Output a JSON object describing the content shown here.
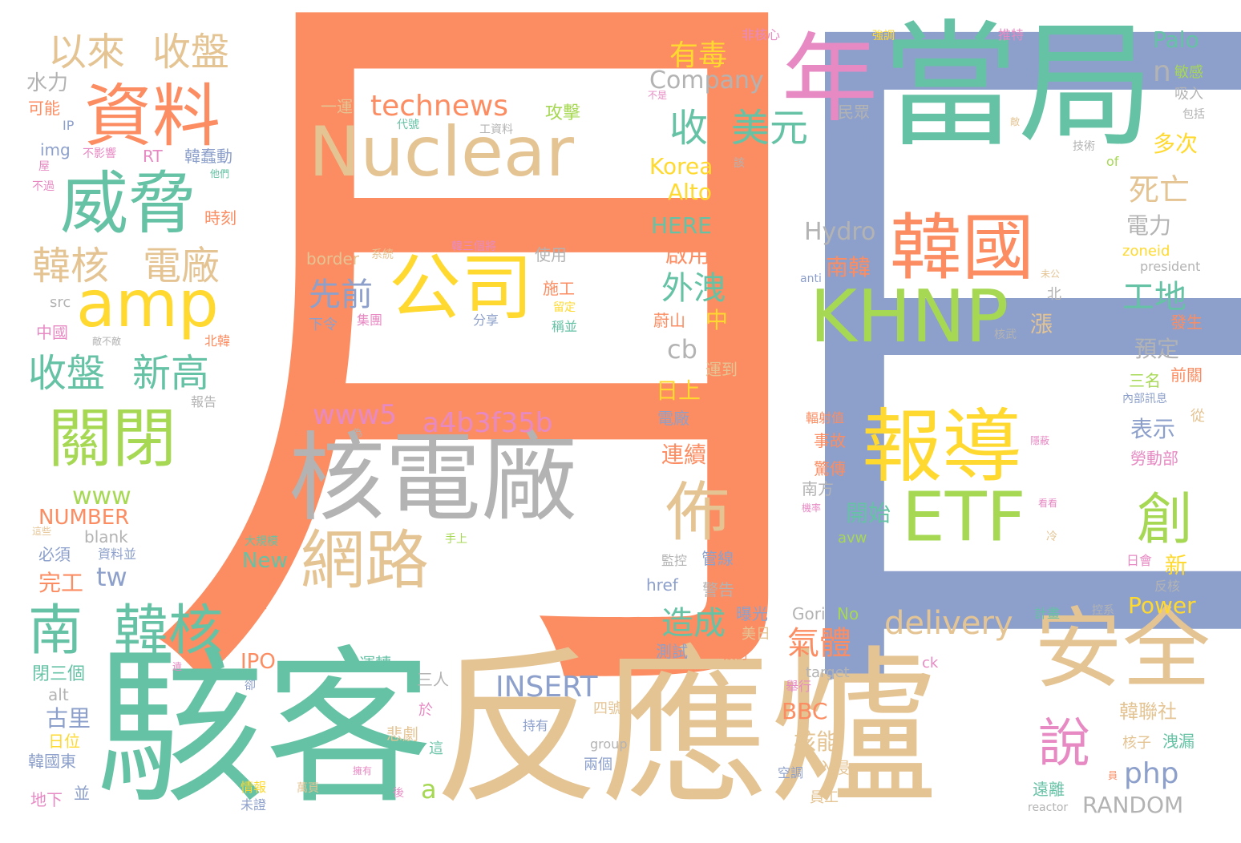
{
  "palette": {
    "orange": "#fc8d62",
    "blue": "#8da0cb",
    "green": "#66c2a5",
    "tan": "#e5c494",
    "pink": "#e78ac3",
    "lime": "#a6d854",
    "yellow": "#ffd92f",
    "gray": "#b3b3b3"
  },
  "words": [
    {
      "text": "月",
      "color": "orange",
      "size": 960
    },
    {
      "text": "日",
      "color": "blue",
      "size": 960
    },
    {
      "text": "反應爐",
      "color": "tan",
      "size": 210
    },
    {
      "text": "駭客",
      "color": "green",
      "size": 210
    },
    {
      "text": "當局",
      "color": "green",
      "size": 170
    },
    {
      "text": "核電廠",
      "color": "gray",
      "size": 120
    },
    {
      "text": "Nuclear",
      "color": "tan",
      "size": 86
    },
    {
      "text": "年",
      "color": "pink",
      "size": 120
    },
    {
      "text": "安全",
      "color": "tan",
      "size": 110
    },
    {
      "text": "報導",
      "color": "yellow",
      "size": 100
    },
    {
      "text": "韓國",
      "color": "orange",
      "size": 90
    },
    {
      "text": "KHNP",
      "color": "lime",
      "size": 90
    },
    {
      "text": "ETF",
      "color": "lime",
      "size": 85
    },
    {
      "text": "公司",
      "color": "yellow",
      "size": 90
    },
    {
      "text": "資料",
      "color": "orange",
      "size": 85
    },
    {
      "text": "威脅",
      "color": "green",
      "size": 85
    },
    {
      "text": "amp",
      "color": "yellow",
      "size": 80
    },
    {
      "text": "關閉",
      "color": "lime",
      "size": 80
    },
    {
      "text": "網路",
      "color": "tan",
      "size": 80
    },
    {
      "text": "佈",
      "color": "tan",
      "size": 80
    },
    {
      "text": "創",
      "color": "lime",
      "size": 70
    },
    {
      "text": "南",
      "color": "green",
      "size": 68
    },
    {
      "text": "韓核",
      "color": "green",
      "size": 68
    },
    {
      "text": "說",
      "color": "pink",
      "size": 65
    },
    {
      "text": "以來",
      "color": "tan",
      "size": 48
    },
    {
      "text": "收盤",
      "color": "tan",
      "size": 48
    },
    {
      "text": "韓核",
      "color": "tan",
      "size": 48
    },
    {
      "text": "電廠",
      "color": "tan",
      "size": 48
    },
    {
      "text": "收盤",
      "color": "green",
      "size": 48
    },
    {
      "text": "新高",
      "color": "green",
      "size": 48
    },
    {
      "text": "收",
      "color": "green",
      "size": 48
    },
    {
      "text": "美元",
      "color": "green",
      "size": 48
    },
    {
      "text": "先前",
      "color": "blue",
      "size": 40
    },
    {
      "text": "technews",
      "color": "orange",
      "size": 36
    },
    {
      "text": "www5",
      "color": "pink",
      "size": 34
    },
    {
      "text": "a4b3f35b",
      "color": "pink",
      "size": 34
    },
    {
      "text": "delivery",
      "color": "tan",
      "size": 40
    },
    {
      "text": "INSERT",
      "color": "blue",
      "size": 36
    },
    {
      "text": "外洩",
      "color": "green",
      "size": 40
    },
    {
      "text": "造成",
      "color": "green",
      "size": 40
    },
    {
      "text": "氣體",
      "color": "orange",
      "size": 40
    },
    {
      "text": "工地",
      "color": "green",
      "size": 40
    },
    {
      "text": "死亡",
      "color": "tan",
      "size": 38
    },
    {
      "text": "有毒",
      "color": "yellow",
      "size": 36
    },
    {
      "text": "Company",
      "color": "gray",
      "size": 30
    },
    {
      "text": "Korea",
      "color": "yellow",
      "size": 28
    },
    {
      "text": "Alto",
      "color": "yellow",
      "size": 28
    },
    {
      "text": "HERE",
      "color": "green",
      "size": 28
    },
    {
      "text": "啟用",
      "color": "orange",
      "size": 28
    },
    {
      "text": "cb",
      "color": "gray",
      "size": 32
    },
    {
      "text": "Hydro",
      "color": "gray",
      "size": 30
    },
    {
      "text": "南韓",
      "color": "orange",
      "size": 28
    },
    {
      "text": "開始",
      "color": "green",
      "size": 28
    },
    {
      "text": "php",
      "color": "blue",
      "size": 36
    },
    {
      "text": "RANDOM",
      "color": "gray",
      "size": 28
    },
    {
      "text": "Palo",
      "color": "green",
      "size": 28
    },
    {
      "text": "n",
      "color": "gray",
      "size": 36
    },
    {
      "text": "多次",
      "color": "yellow",
      "size": 28
    },
    {
      "text": "電力",
      "color": "gray",
      "size": 28
    },
    {
      "text": "預定",
      "color": "gray",
      "size": 28
    },
    {
      "text": "表示",
      "color": "blue",
      "size": 28
    },
    {
      "text": "Power",
      "color": "yellow",
      "size": 28
    },
    {
      "text": "新",
      "color": "yellow",
      "size": 28
    },
    {
      "text": "韓聯社",
      "color": "tan",
      "size": 24
    },
    {
      "text": "核能",
      "color": "tan",
      "size": 28
    },
    {
      "text": "BBC",
      "color": "orange",
      "size": 28
    },
    {
      "text": "IPO",
      "color": "orange",
      "size": 26
    },
    {
      "text": "New",
      "color": "green",
      "size": 26
    },
    {
      "text": "tw",
      "color": "blue",
      "size": 32
    },
    {
      "text": "www",
      "color": "lime",
      "size": 30
    },
    {
      "text": "NUMBER",
      "color": "orange",
      "size": 26
    },
    {
      "text": "blank",
      "color": "gray",
      "size": 20
    },
    {
      "text": "完工",
      "color": "orange",
      "size": 28
    },
    {
      "text": "古里",
      "color": "blue",
      "size": 28
    },
    {
      "text": "日位",
      "color": "yellow",
      "size": 20
    },
    {
      "text": "韓國東",
      "color": "blue",
      "size": 20
    },
    {
      "text": "地下",
      "color": "pink",
      "size": 20
    },
    {
      "text": "並",
      "color": "blue",
      "size": 20
    },
    {
      "text": "閉三個",
      "color": "green",
      "size": 22
    },
    {
      "text": "alt",
      "color": "gray",
      "size": 20
    },
    {
      "text": "必須",
      "color": "blue",
      "size": 20
    },
    {
      "text": "資料並",
      "color": "blue",
      "size": 16
    },
    {
      "text": "中國",
      "color": "pink",
      "size": 20
    },
    {
      "text": "src",
      "color": "gray",
      "size": 18
    },
    {
      "text": "時刻",
      "color": "orange",
      "size": 20
    },
    {
      "text": "韓蠢動",
      "color": "blue",
      "size": 20
    },
    {
      "text": "RT",
      "color": "pink",
      "size": 20
    },
    {
      "text": "img",
      "color": "blue",
      "size": 20
    },
    {
      "text": "IP",
      "color": "blue",
      "size": 16
    },
    {
      "text": "可能",
      "color": "orange",
      "size": 20
    },
    {
      "text": "水力",
      "color": "gray",
      "size": 26
    },
    {
      "text": "不影響",
      "color": "pink",
      "size": 14
    },
    {
      "text": "不過",
      "color": "pink",
      "size": 14
    },
    {
      "text": "屋",
      "color": "pink",
      "size": 14
    },
    {
      "text": "他們",
      "color": "green",
      "size": 12
    },
    {
      "text": "報告",
      "color": "gray",
      "size": 16
    },
    {
      "text": "北韓",
      "color": "orange",
      "size": 16
    },
    {
      "text": "敵不敵",
      "color": "gray",
      "size": 12
    },
    {
      "text": "一運",
      "color": "tan",
      "size": 20
    },
    {
      "text": "工資料",
      "color": "gray",
      "size": 14
    },
    {
      "text": "代號",
      "color": "green",
      "size": 14
    },
    {
      "text": "攻擊",
      "color": "lime",
      "size": 22
    },
    {
      "text": "border",
      "color": "tan",
      "size": 20
    },
    {
      "text": "系統",
      "color": "tan",
      "size": 14
    },
    {
      "text": "韓三個將",
      "color": "pink",
      "size": 14
    },
    {
      "text": "使用",
      "color": "gray",
      "size": 20
    },
    {
      "text": "施工",
      "color": "orange",
      "size": 20
    },
    {
      "text": "留定",
      "color": "yellow",
      "size": 14
    },
    {
      "text": "稱並",
      "color": "green",
      "size": 16
    },
    {
      "text": "下令",
      "color": "blue",
      "size": 18
    },
    {
      "text": "集團",
      "color": "pink",
      "size": 16
    },
    {
      "text": "分享",
      "color": "blue",
      "size": 16
    },
    {
      "text": "為",
      "color": "gray",
      "size": 12
    },
    {
      "text": "非核心",
      "color": "pink",
      "size": 16
    },
    {
      "text": "強調",
      "color": "yellow",
      "size": 14
    },
    {
      "text": "推特",
      "color": "pink",
      "size": 16
    },
    {
      "text": "敏感",
      "color": "lime",
      "size": 18
    },
    {
      "text": "吸入",
      "color": "gray",
      "size": 18
    },
    {
      "text": "包括",
      "color": "gray",
      "size": 14
    },
    {
      "text": "技術",
      "color": "gray",
      "size": 14
    },
    {
      "text": "of",
      "color": "lime",
      "size": 16
    },
    {
      "text": "民眾",
      "color": "gray",
      "size": 20
    },
    {
      "text": "耶誕節",
      "color": "blue",
      "size": 20
    },
    {
      "text": "不是",
      "color": "pink",
      "size": 12
    },
    {
      "text": "該",
      "color": "gray",
      "size": 14
    },
    {
      "text": "敵",
      "color": "tan",
      "size": 12
    },
    {
      "text": "zoneid",
      "color": "yellow",
      "size": 18
    },
    {
      "text": "president",
      "color": "gray",
      "size": 16
    },
    {
      "text": "anti",
      "color": "blue",
      "size": 14
    },
    {
      "text": "未公",
      "color": "tan",
      "size": 12
    },
    {
      "text": "北",
      "color": "gray",
      "size": 18
    },
    {
      "text": "核武",
      "color": "gray",
      "size": 14
    },
    {
      "text": "漲",
      "color": "tan",
      "size": 28
    },
    {
      "text": "中",
      "color": "yellow",
      "size": 28
    },
    {
      "text": "蔚山",
      "color": "orange",
      "size": 20
    },
    {
      "text": "起見",
      "color": "orange",
      "size": 14
    },
    {
      "text": "運到",
      "color": "tan",
      "size": 20
    },
    {
      "text": "日上",
      "color": "yellow",
      "size": 28
    },
    {
      "text": "電廠",
      "color": "blue",
      "size": 20
    },
    {
      "text": "公",
      "color": "orange",
      "size": 28
    },
    {
      "text": "連續",
      "color": "orange",
      "size": 28
    },
    {
      "text": "發生",
      "color": "orange",
      "size": 20
    },
    {
      "text": "前關",
      "color": "orange",
      "size": 20
    },
    {
      "text": "三名",
      "color": "lime",
      "size": 20
    },
    {
      "text": "內部訊息",
      "color": "blue",
      "size": 14
    },
    {
      "text": "從",
      "color": "tan",
      "size": 18
    },
    {
      "text": "勞動部",
      "color": "pink",
      "size": 20
    },
    {
      "text": "輻射值",
      "color": "orange",
      "size": 16
    },
    {
      "text": "隱蔽",
      "color": "pink",
      "size": 12
    },
    {
      "text": "事故",
      "color": "orange",
      "size": 20
    },
    {
      "text": "驚傳",
      "color": "orange",
      "size": 20
    },
    {
      "text": "南方",
      "color": "gray",
      "size": 20
    },
    {
      "text": "機率",
      "color": "pink",
      "size": 12
    },
    {
      "text": "avw",
      "color": "lime",
      "size": 18
    },
    {
      "text": "冷",
      "color": "tan",
      "size": 14
    },
    {
      "text": "看看",
      "color": "pink",
      "size": 12
    },
    {
      "text": "日會",
      "color": "pink",
      "size": 16
    },
    {
      "text": "反核",
      "color": "gray",
      "size": 16
    },
    {
      "text": "計畫",
      "color": "green",
      "size": 16
    },
    {
      "text": "控系",
      "color": "gray",
      "size": 14
    },
    {
      "text": "監控",
      "color": "gray",
      "size": 16
    },
    {
      "text": "管線",
      "color": "blue",
      "size": 20
    },
    {
      "text": "href",
      "color": "blue",
      "size": 20
    },
    {
      "text": "警告",
      "color": "gray",
      "size": 20
    },
    {
      "text": "曝光",
      "color": "blue",
      "size": 20
    },
    {
      "text": "Gori",
      "color": "gray",
      "size": 20
    },
    {
      "text": "No",
      "color": "lime",
      "size": 20
    },
    {
      "text": "美日",
      "color": "tan",
      "size": 18
    },
    {
      "text": "測試",
      "color": "blue",
      "size": 20
    },
    {
      "text": "簽訂",
      "color": "orange",
      "size": 16
    },
    {
      "text": "target",
      "color": "gray",
      "size": 18
    },
    {
      "text": "ck",
      "color": "pink",
      "size": 18
    },
    {
      "text": "舉行",
      "color": "pink",
      "size": 16
    },
    {
      "text": "四號",
      "color": "tan",
      "size": 18
    },
    {
      "text": "group",
      "color": "gray",
      "size": 16
    },
    {
      "text": "兩個",
      "color": "blue",
      "size": 18
    },
    {
      "text": "空調",
      "color": "blue",
      "size": 16
    },
    {
      "text": "入侵",
      "color": "tan",
      "size": 20
    },
    {
      "text": "員工",
      "color": "tan",
      "size": 18
    },
    {
      "text": "核子",
      "color": "tan",
      "size": 18
    },
    {
      "text": "洩漏",
      "color": "green",
      "size": 20
    },
    {
      "text": "遠離",
      "color": "green",
      "size": 20
    },
    {
      "text": "reactor",
      "color": "gray",
      "size": 14
    },
    {
      "text": "員",
      "color": "orange",
      "size": 12
    },
    {
      "text": "a",
      "color": "lime",
      "size": 32
    },
    {
      "text": "三人",
      "color": "gray",
      "size": 20
    },
    {
      "text": "於",
      "color": "pink",
      "size": 18
    },
    {
      "text": "這",
      "color": "green",
      "size": 18
    },
    {
      "text": "悲劇",
      "color": "tan",
      "size": 20
    },
    {
      "text": "持有",
      "color": "blue",
      "size": 16
    },
    {
      "text": "後",
      "color": "pink",
      "size": 14
    },
    {
      "text": "擁有",
      "color": "pink",
      "size": 12
    },
    {
      "text": "萬頁",
      "color": "tan",
      "size": 14
    },
    {
      "text": "運轉",
      "color": "green",
      "size": 20
    },
    {
      "text": "情報",
      "color": "yellow",
      "size": 16
    },
    {
      "text": "未證",
      "color": "blue",
      "size": 16
    },
    {
      "text": "卻",
      "color": "blue",
      "size": 14
    },
    {
      "text": "遺",
      "color": "pink",
      "size": 12
    },
    {
      "text": "演練",
      "color": "orange",
      "size": 14
    },
    {
      "text": "三號",
      "color": "orange",
      "size": 20
    },
    {
      "text": "大規模",
      "color": "green",
      "size": 14
    },
    {
      "text": "氯氣",
      "color": "orange",
      "size": 20
    },
    {
      "text": "手上",
      "color": "lime",
      "size": 14
    },
    {
      "text": "這些",
      "color": "tan",
      "size": 12
    }
  ]
}
